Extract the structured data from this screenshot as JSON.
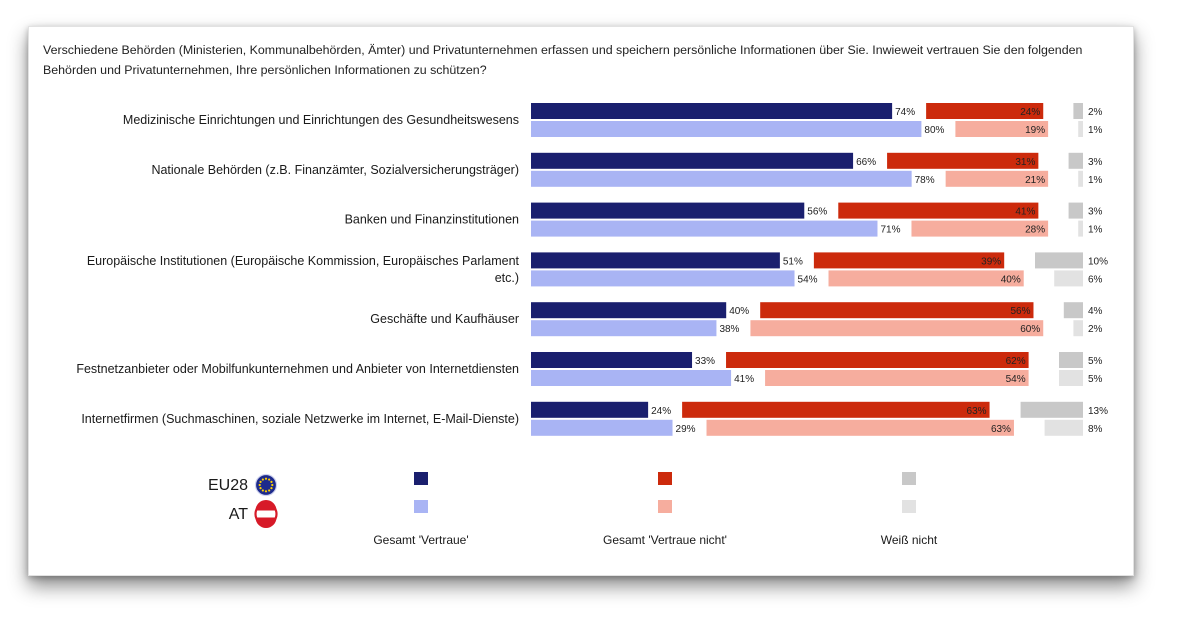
{
  "question": "Verschiedene Behörden (Ministerien, Kommunalbehörden, Ämter) und Privatunternehmen erfassen und speichern persönliche Informationen über Sie. Inwieweit vertrauen Sie den folgenden Behörden und Privatunternehmen, Ihre persönlichen Informationen zu schützen?",
  "colors": {
    "eu_trust": "#1a1f6e",
    "at_trust": "#a9b4f4",
    "eu_distrust": "#cc2a0c",
    "at_distrust": "#f6ad9e",
    "eu_dontknow": "#c8c8c8",
    "at_dontknow": "#e2e2e2"
  },
  "chart_data": {
    "type": "bar",
    "orientation": "horizontal-stacked",
    "categories": [
      [
        "Medizinische Einrichtungen und Einrichtungen des Gesundheitswesens"
      ],
      [
        "Nationale Behörden (z.B. Finanzämter, Sozialversicherungsträger)"
      ],
      [
        "Banken und Finanzinstitutionen"
      ],
      [
        "Europäische Institutionen (Europäische Kommission, Europäisches Parlament",
        "etc.)"
      ],
      [
        "Geschäfte und Kaufhäuser"
      ],
      [
        "Festnetzanbieter oder Mobilfunkunternehmen und Anbieter von Internetdiensten"
      ],
      [
        "Internetfirmen (Suchmaschinen, soziale Netzwerke im Internet, E-Mail-Dienste)"
      ]
    ],
    "series": [
      {
        "name": "EU28",
        "trust": [
          74,
          66,
          56,
          51,
          40,
          33,
          24
        ],
        "distrust": [
          24,
          31,
          41,
          39,
          56,
          62,
          63
        ],
        "dontknow": [
          2,
          3,
          3,
          10,
          4,
          5,
          13
        ]
      },
      {
        "name": "AT",
        "trust": [
          80,
          78,
          71,
          54,
          38,
          41,
          29
        ],
        "distrust": [
          19,
          21,
          28,
          40,
          60,
          54,
          63
        ],
        "dontknow": [
          1,
          1,
          1,
          6,
          2,
          5,
          8
        ]
      }
    ],
    "legend": {
      "rows": [
        "EU28",
        "AT"
      ],
      "columns": [
        "Gesamt 'Vertraue'",
        "Gesamt 'Vertraue nicht'",
        "Weiß nicht"
      ]
    },
    "value_suffix": "%"
  }
}
